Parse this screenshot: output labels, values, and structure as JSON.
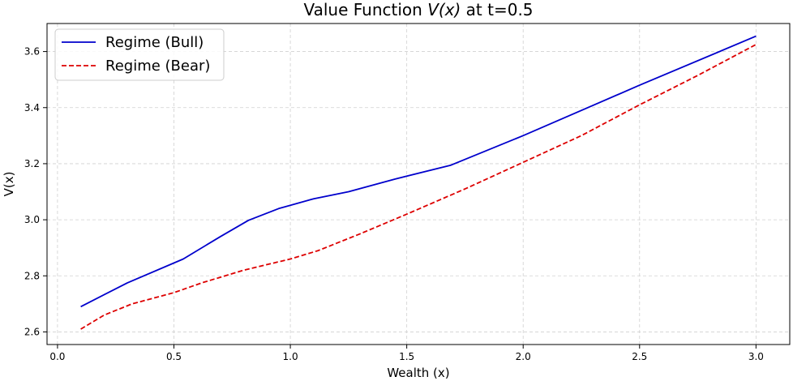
{
  "chart_data": {
    "type": "line",
    "title_main": "Value Function ",
    "title_math": "V(x)",
    "title_tail": " at t=0.5",
    "xlabel": "Wealth (x)",
    "ylabel": "V(x)",
    "xlim": [
      -0.045,
      3.145
    ],
    "ylim": [
      2.555,
      3.7
    ],
    "xticks": [
      0.0,
      0.5,
      1.0,
      1.5,
      2.0,
      2.5,
      3.0
    ],
    "xtick_labels": [
      "0.0",
      "0.5",
      "1.0",
      "1.5",
      "2.0",
      "2.5",
      "3.0"
    ],
    "yticks": [
      2.6,
      2.8,
      3.0,
      3.2,
      3.4,
      3.6
    ],
    "ytick_labels": [
      "2.6",
      "2.8",
      "3.0",
      "3.2",
      "3.4",
      "3.6"
    ],
    "grid": true,
    "legend_position": "top-left",
    "series": [
      {
        "name": "Regime (Bull)",
        "color": "#0000cc",
        "style": "solid",
        "x": [
          0.1,
          0.3,
          0.54,
          0.7,
          0.82,
          0.95,
          1.1,
          1.25,
          1.45,
          1.69,
          2.0,
          2.5,
          3.0
        ],
        "y": [
          2.69,
          2.775,
          2.86,
          2.94,
          2.998,
          3.04,
          3.075,
          3.1,
          3.145,
          3.195,
          3.3,
          3.48,
          3.655
        ]
      },
      {
        "name": "Regime (Bear)",
        "color": "#dd0000",
        "style": "dashed",
        "x": [
          0.1,
          0.2,
          0.32,
          0.5,
          0.62,
          0.8,
          1.0,
          1.12,
          1.3,
          1.5,
          1.75,
          2.0,
          2.25,
          2.5,
          2.75,
          3.0
        ],
        "y": [
          2.61,
          2.66,
          2.7,
          2.74,
          2.775,
          2.82,
          2.86,
          2.89,
          2.95,
          3.02,
          3.11,
          3.205,
          3.3,
          3.41,
          3.515,
          3.625
        ]
      }
    ]
  }
}
